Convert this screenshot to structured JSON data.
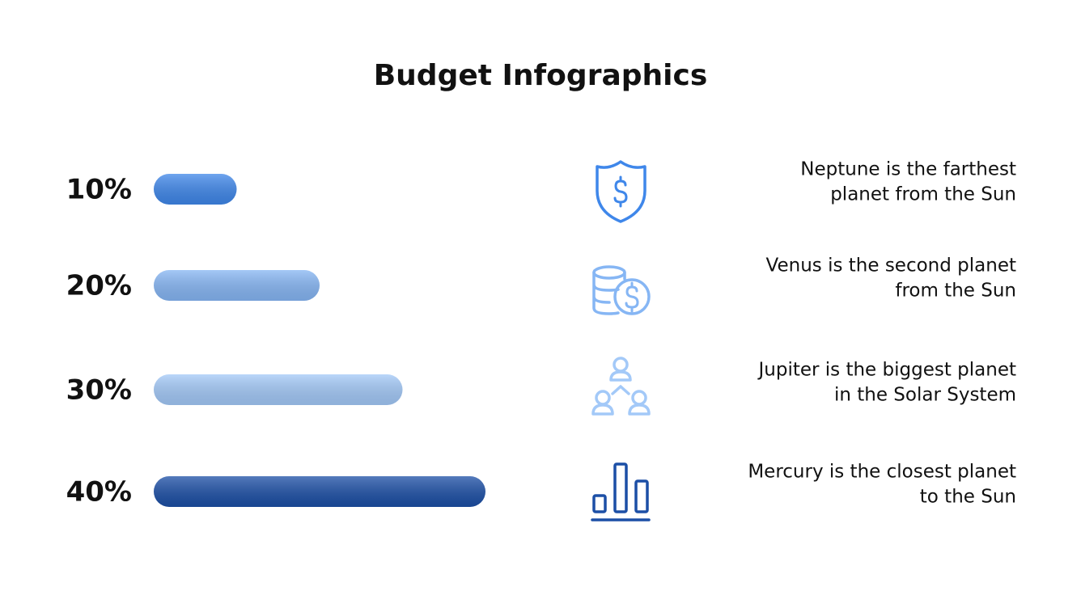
{
  "title": "Budget Infographics",
  "rows": [
    {
      "value": 10,
      "label": "10%",
      "color": "#3f87ea",
      "lines": [
        "Neptune is the farthest",
        "planet from the Sun"
      ]
    },
    {
      "value": 20,
      "label": "20%",
      "color": "#86b6f4",
      "lines": [
        "Venus is the second planet",
        "from the Sun"
      ]
    },
    {
      "value": 30,
      "label": "30%",
      "color": "#a3c9f8",
      "lines": [
        "Jupiter is the biggest planet",
        "in the Solar System"
      ]
    },
    {
      "value": 40,
      "label": "40%",
      "color": "#1c4fa6",
      "lines": [
        "Mercury is the closest planet",
        "to the Sun"
      ]
    }
  ]
}
